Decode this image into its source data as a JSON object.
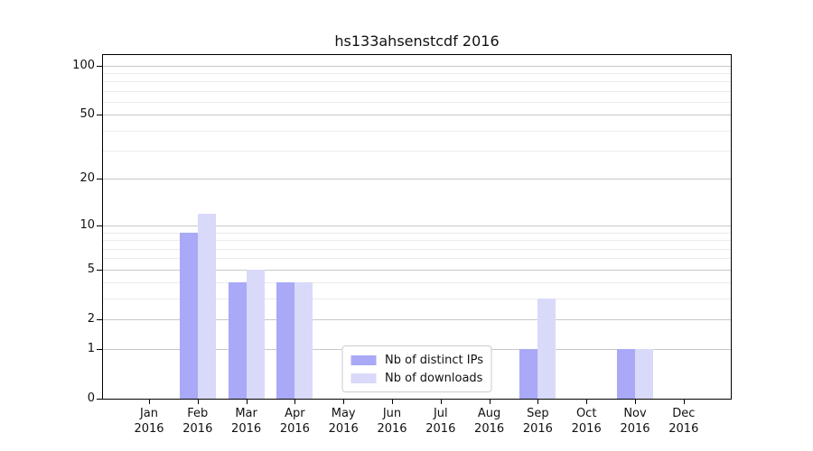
{
  "chart_data": {
    "type": "bar",
    "title": "hs133ahsenstcdf 2016",
    "x_tick_months": [
      "Jan",
      "Feb",
      "Mar",
      "Apr",
      "May",
      "Jun",
      "Jul",
      "Aug",
      "Sep",
      "Oct",
      "Nov",
      "Dec"
    ],
    "x_tick_year": "2016",
    "series": [
      {
        "name": "Nb of distinct IPs",
        "color": "#a9a9f7",
        "values": [
          0,
          9,
          4,
          4,
          0,
          0,
          0,
          0,
          1,
          0,
          1,
          0
        ]
      },
      {
        "name": "Nb of downloads",
        "color": "#d9d9f9",
        "values": [
          0,
          12,
          5,
          4,
          0,
          0,
          0,
          0,
          3,
          0,
          1,
          0
        ]
      }
    ],
    "y_axis": {
      "scale": "log10(1+x)",
      "tick_values": [
        0,
        1,
        2,
        5,
        10,
        20,
        50,
        100
      ],
      "tick_labels": [
        "0",
        "1",
        "2",
        "5",
        "10",
        "20",
        "50",
        "100"
      ],
      "minor_gridline_values": [
        3,
        4,
        6,
        7,
        8,
        9,
        30,
        40,
        60,
        70,
        80,
        90
      ],
      "ylim": [
        0,
        116
      ]
    },
    "grid": true,
    "legend": {
      "position": "lower center",
      "entries": [
        "Nb of distinct IPs",
        "Nb of downloads"
      ]
    },
    "colors": {
      "major_grid": "#c8c8c8",
      "minor_grid": "#ebebeb",
      "axis": "#000000",
      "text": "#111111",
      "legend_border": "#cccccc",
      "background": "#ffffff"
    }
  }
}
